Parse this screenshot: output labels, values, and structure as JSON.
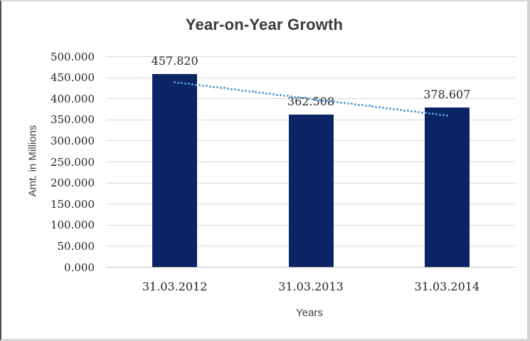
{
  "chart_data": {
    "type": "bar",
    "title": "Year-on-Year Growth",
    "xlabel": "Years",
    "ylabel": "Amt. in Millions",
    "categories": [
      "31.03.2012",
      "31.03.2013",
      "31.03.2014"
    ],
    "values": [
      457.82,
      362.508,
      378.607
    ],
    "value_labels": [
      "457.820",
      "362.508",
      "378.607"
    ],
    "ylim": [
      0,
      500
    ],
    "ytick_step": 50,
    "ytick_labels": [
      "0.000",
      "50.000",
      "100.000",
      "150.000",
      "200.000",
      "250.000",
      "300.000",
      "350.000",
      "400.000",
      "450.000",
      "500.000"
    ],
    "grid": true,
    "legend": "none",
    "colors": {
      "bar": "#0b2463",
      "gridline": "#d9d9d9",
      "axis_line": "#c3c3c3",
      "text": "#262626",
      "title": "#3a3a3a",
      "trendline": "#5b9bd5"
    },
    "trendline": {
      "type": "linear",
      "style": "dotted",
      "color": "#5b9bd5",
      "start_value": 439.3,
      "end_value": 360.0
    }
  }
}
